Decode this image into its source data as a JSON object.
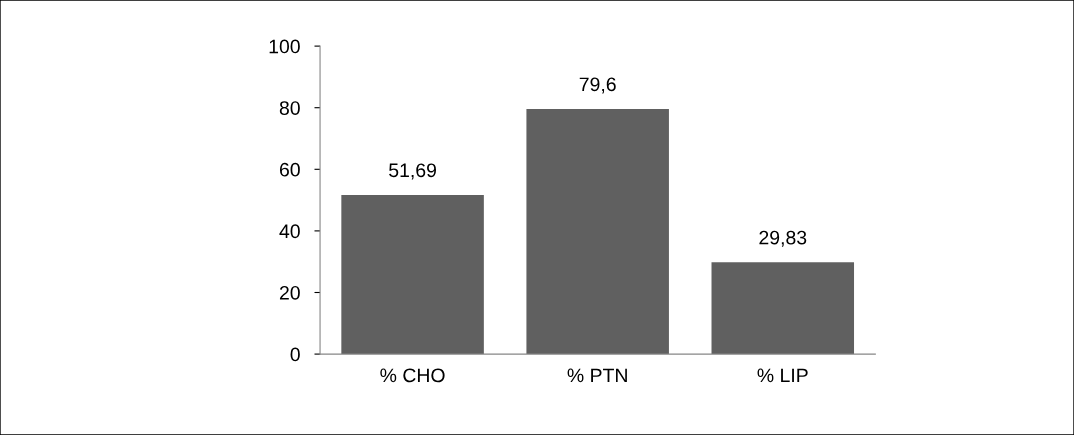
{
  "chart_data": {
    "type": "bar",
    "categories": [
      "% CHO",
      "% PTN",
      "% LIP"
    ],
    "values": [
      51.69,
      79.6,
      29.83
    ],
    "value_labels": [
      "51,69",
      "79,6",
      "29,83"
    ],
    "color": "#606060",
    "ylim": [
      0,
      100
    ],
    "yticks": [
      0,
      20,
      40,
      60,
      80,
      100
    ]
  }
}
